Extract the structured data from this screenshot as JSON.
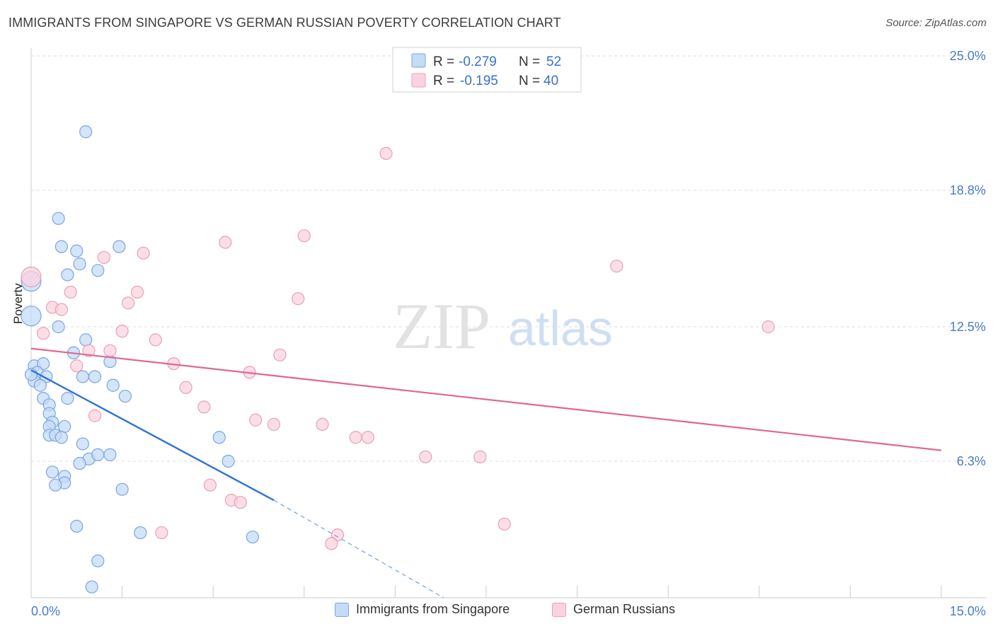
{
  "header": {
    "title": "IMMIGRANTS FROM SINGAPORE VS GERMAN RUSSIAN POVERTY CORRELATION CHART",
    "source": "Source: ZipAtlas.com"
  },
  "watermark": {
    "zip": "ZIP",
    "atlas": "atlas"
  },
  "stats_legend": {
    "rows": [
      {
        "r_label": "R =",
        "r_value": "-0.279",
        "n_label": "N =",
        "n_value": "52",
        "color": "#a9c8f0",
        "stroke": "#5b8fd6"
      },
      {
        "r_label": "R =",
        "r_value": "-0.195",
        "n_label": "N =",
        "n_value": "40",
        "color": "#f8c0d0",
        "stroke": "#e28aa6"
      }
    ]
  },
  "bottom_legend": {
    "items": [
      {
        "label": "Immigrants from Singapore",
        "color": "#c6dbf7",
        "stroke": "#7aa6e0"
      },
      {
        "label": "German Russians",
        "color": "#fbd3df",
        "stroke": "#e8a0b7"
      }
    ]
  },
  "chart_data": {
    "type": "scatter",
    "ylabel": "Poverty",
    "xlabel": "",
    "xlim": [
      0,
      15
    ],
    "ylim": [
      0,
      25
    ],
    "x_tick_labels": [
      "0.0%",
      "15.0%"
    ],
    "y_tick_values": [
      6.3,
      12.5,
      18.8,
      25.0
    ],
    "y_tick_labels": [
      "6.3%",
      "12.5%",
      "18.8%",
      "25.0%"
    ],
    "grid": true,
    "legend": "top-center",
    "series": [
      {
        "name": "Immigrants from Singapore",
        "color": "#7aa6e0",
        "fill": "#c6dbf7",
        "trend": {
          "x": [
            0,
            4.0
          ],
          "y": [
            10.5,
            4.5
          ],
          "dashed_to": [
            6.8,
            0
          ]
        },
        "points": [
          [
            0.9,
            21.5
          ],
          [
            0.45,
            17.5
          ],
          [
            0.5,
            16.2
          ],
          [
            0.75,
            16.0
          ],
          [
            1.45,
            16.2
          ],
          [
            0.8,
            15.4
          ],
          [
            0.6,
            14.9
          ],
          [
            1.1,
            15.1
          ],
          [
            0.0,
            14.6
          ],
          [
            0.0,
            13.0
          ],
          [
            0.45,
            12.5
          ],
          [
            0.9,
            11.9
          ],
          [
            0.7,
            11.3
          ],
          [
            1.3,
            10.9
          ],
          [
            0.05,
            10.7
          ],
          [
            0.2,
            10.8
          ],
          [
            0.1,
            10.4
          ],
          [
            0.25,
            10.2
          ],
          [
            0.85,
            10.2
          ],
          [
            1.05,
            10.2
          ],
          [
            0.05,
            10.0
          ],
          [
            0.15,
            9.8
          ],
          [
            1.35,
            9.8
          ],
          [
            1.55,
            9.3
          ],
          [
            0.2,
            9.2
          ],
          [
            0.6,
            9.2
          ],
          [
            0.3,
            8.9
          ],
          [
            0.3,
            8.5
          ],
          [
            0.35,
            8.1
          ],
          [
            0.3,
            7.9
          ],
          [
            0.55,
            7.9
          ],
          [
            0.3,
            7.5
          ],
          [
            0.4,
            7.5
          ],
          [
            0.5,
            7.4
          ],
          [
            0.85,
            7.1
          ],
          [
            3.1,
            7.4
          ],
          [
            0.95,
            6.4
          ],
          [
            1.1,
            6.6
          ],
          [
            1.3,
            6.6
          ],
          [
            0.8,
            6.2
          ],
          [
            3.25,
            6.3
          ],
          [
            0.35,
            5.8
          ],
          [
            0.55,
            5.6
          ],
          [
            0.55,
            5.3
          ],
          [
            0.4,
            5.2
          ],
          [
            1.5,
            5.0
          ],
          [
            0.75,
            3.3
          ],
          [
            1.8,
            3.0
          ],
          [
            3.65,
            2.8
          ],
          [
            1.1,
            1.7
          ],
          [
            1.0,
            0.5
          ],
          [
            0.0,
            10.3
          ]
        ]
      },
      {
        "name": "German Russians",
        "color": "#e8a0b7",
        "fill": "#fbd3df",
        "trend": {
          "x": [
            0,
            15
          ],
          "y": [
            11.5,
            6.8
          ]
        },
        "points": [
          [
            5.85,
            20.5
          ],
          [
            4.5,
            16.7
          ],
          [
            3.2,
            16.4
          ],
          [
            1.85,
            15.9
          ],
          [
            1.2,
            15.7
          ],
          [
            9.65,
            15.3
          ],
          [
            0.0,
            14.8
          ],
          [
            0.65,
            14.1
          ],
          [
            1.75,
            14.1
          ],
          [
            4.4,
            13.8
          ],
          [
            1.6,
            13.6
          ],
          [
            0.35,
            13.4
          ],
          [
            0.5,
            13.3
          ],
          [
            12.15,
            12.5
          ],
          [
            1.5,
            12.3
          ],
          [
            0.2,
            12.2
          ],
          [
            2.05,
            11.9
          ],
          [
            0.95,
            11.4
          ],
          [
            1.3,
            11.4
          ],
          [
            4.1,
            11.2
          ],
          [
            2.35,
            10.8
          ],
          [
            0.75,
            10.7
          ],
          [
            3.6,
            10.4
          ],
          [
            2.55,
            9.7
          ],
          [
            2.85,
            8.8
          ],
          [
            1.05,
            8.4
          ],
          [
            3.7,
            8.2
          ],
          [
            4.0,
            8.0
          ],
          [
            4.8,
            8.0
          ],
          [
            5.35,
            7.4
          ],
          [
            5.55,
            7.4
          ],
          [
            6.5,
            6.5
          ],
          [
            7.4,
            6.5
          ],
          [
            2.95,
            5.2
          ],
          [
            3.3,
            4.5
          ],
          [
            3.45,
            4.4
          ],
          [
            7.8,
            3.4
          ],
          [
            2.15,
            3.0
          ],
          [
            5.05,
            2.9
          ],
          [
            4.95,
            2.5
          ]
        ]
      }
    ]
  }
}
